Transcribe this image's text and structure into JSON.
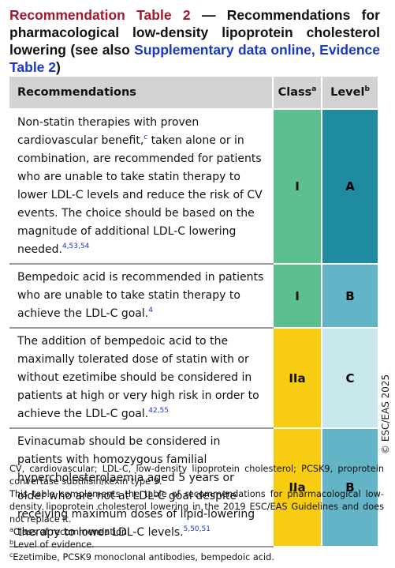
{
  "title": {
    "label": "Recommendation Table 2",
    "text": " — Recommendations for pharmacological low-density lipoprotein cholesterol lowering (see also ",
    "link": "Supplementary data online, Evidence Table 2",
    "end": ")"
  },
  "table": {
    "header": {
      "recommendations": "Recommendations",
      "class": "Class",
      "class_sup": "a",
      "level": "Level",
      "level_sup": "b"
    },
    "rows": [
      {
        "segments": [
          {
            "text": "Non-statin therapies with proven cardiovascular benefit,"
          },
          {
            "sup": "c"
          },
          {
            "text": " taken alone or in combination, are recommended for patients who are unable to take statin therapy to lower LDL-C levels and reduce the risk of CV events. The choice should be based on the magnitude of additional LDL-C lowering needed."
          },
          {
            "sup": "4,53,54"
          }
        ],
        "class": "I",
        "class_color": "#5cbf8f",
        "level": "A",
        "level_color": "#1f8ba0",
        "level_text_color": "#000000"
      },
      {
        "segments": [
          {
            "text": "Bempedoic acid is recommended in patients who are unable to take statin therapy to achieve the LDL-C goal."
          },
          {
            "sup": "4"
          }
        ],
        "class": "I",
        "class_color": "#5cbf8f",
        "level": "B",
        "level_color": "#62b4c6",
        "level_text_color": "#000000"
      },
      {
        "segments": [
          {
            "text": "The addition of bempedoic acid to the maximally tolerated dose of statin with or without ezetimibe should be considered in patients at high or very high risk in order to achieve the LDL-C goal."
          },
          {
            "sup": "42,55"
          }
        ],
        "class": "IIa",
        "class_color": "#f8cc12",
        "level": "C",
        "level_color": "#c8e7eb",
        "level_text_color": "#000000"
      },
      {
        "segments": [
          {
            "text": "Evinacumab should be considered in patients with homozygous familial hypercholesterolaemia aged 5 years or older who are not at LDL-C goal despite receiving maximum doses of lipid-lowering therapy to lower LDL-C levels."
          },
          {
            "sup": "5,50,51"
          }
        ],
        "class": "IIa",
        "class_color": "#f8cc12",
        "level": "B",
        "level_color": "#62b4c6",
        "level_text_color": "#000000"
      }
    ]
  },
  "copyright": "© ESC/EAS 2025",
  "footnotes": [
    [
      {
        "text": "CV, cardiovascular; LDL-C, low-density lipoprotein cholesterol; PCSK9, proprotein convertase subtilisin/kexin type 9."
      }
    ],
    [
      {
        "text": "This table complements the table of recommendations for pharmacological low-density lipoprotein cholesterol lowering in the 2019 ESC/EAS Guidelines and does not replace it."
      }
    ],
    [
      {
        "sup": "a"
      },
      {
        "text": "Class of recommendation."
      }
    ],
    [
      {
        "sup": "b"
      },
      {
        "text": "Level of evidence."
      }
    ],
    [
      {
        "sup": "c"
      },
      {
        "text": "Ezetimibe, PCSK9 monoclonal antibodies, bempedoic acid."
      }
    ]
  ]
}
